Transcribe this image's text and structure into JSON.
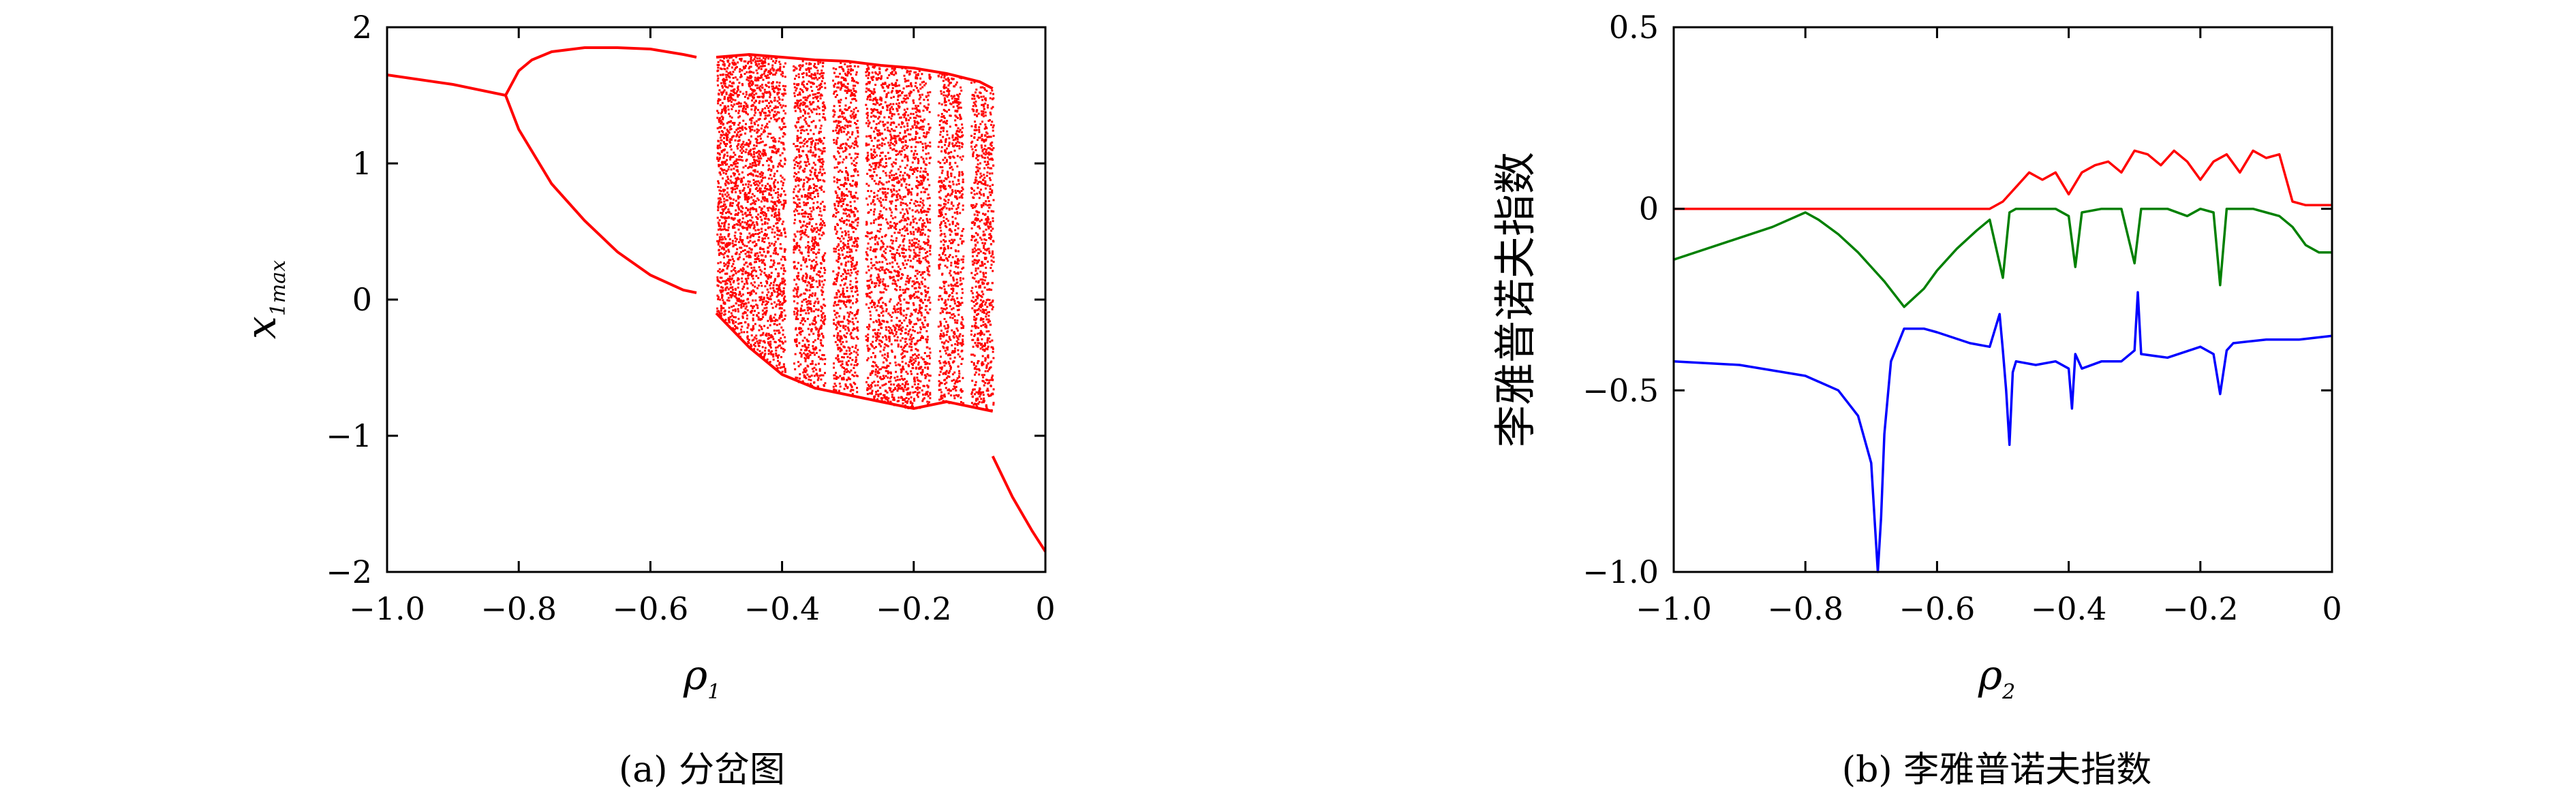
{
  "chart_data": [
    {
      "type": "scatter",
      "panel": "a",
      "caption": "(a) 分岔图",
      "xlabel": "ρ",
      "xlabel_sub": "1",
      "ylabel": "x",
      "ylabel_sub": "1max",
      "xlim": [
        -1.0,
        0
      ],
      "ylim": [
        -2,
        2
      ],
      "xticks": [
        -1.0,
        -0.8,
        -0.6,
        -0.4,
        -0.2,
        0
      ],
      "xtick_labels": [
        "−1.0",
        "−0.8",
        "−0.6",
        "−0.4",
        "−0.2",
        "0"
      ],
      "yticks": [
        -2,
        -1,
        0,
        1,
        2
      ],
      "ytick_labels": [
        "−2",
        "−1",
        "0",
        "1",
        "2"
      ],
      "color": "#ff0000",
      "series": [
        {
          "branch": "period-1",
          "x": [
            -1.0,
            -0.9,
            -0.82
          ],
          "y": [
            1.65,
            1.58,
            1.5
          ]
        },
        {
          "branch": "period-2 upper",
          "x": [
            -0.82,
            -0.8,
            -0.78,
            -0.75,
            -0.7,
            -0.65,
            -0.6,
            -0.55,
            -0.53
          ],
          "y": [
            1.5,
            1.68,
            1.76,
            1.82,
            1.85,
            1.85,
            1.84,
            1.8,
            1.78
          ]
        },
        {
          "branch": "period-2 lower",
          "x": [
            -0.82,
            -0.8,
            -0.75,
            -0.7,
            -0.65,
            -0.6,
            -0.55,
            -0.53
          ],
          "y": [
            1.5,
            1.25,
            0.85,
            0.58,
            0.35,
            0.18,
            0.07,
            0.05
          ]
        },
        {
          "branch": "chaotic band upper edge",
          "x": [
            -0.5,
            -0.45,
            -0.4,
            -0.35,
            -0.3,
            -0.25,
            -0.2,
            -0.15,
            -0.1,
            -0.08
          ],
          "y": [
            1.78,
            1.8,
            1.78,
            1.76,
            1.75,
            1.72,
            1.7,
            1.66,
            1.6,
            1.55
          ]
        },
        {
          "branch": "chaotic band lower edge",
          "x": [
            -0.5,
            -0.45,
            -0.4,
            -0.35,
            -0.3,
            -0.25,
            -0.2,
            -0.15,
            -0.1,
            -0.08
          ],
          "y": [
            -0.1,
            -0.35,
            -0.55,
            -0.65,
            -0.7,
            -0.75,
            -0.8,
            -0.75,
            -0.8,
            -0.82
          ]
        },
        {
          "branch": "right-end branch",
          "x": [
            -0.08,
            -0.05,
            -0.02,
            0
          ],
          "y": [
            -1.15,
            -1.45,
            -1.7,
            -1.85
          ]
        }
      ],
      "periodic_windows": [
        -0.39,
        -0.33,
        -0.28,
        -0.17,
        -0.12
      ]
    },
    {
      "type": "line",
      "panel": "b",
      "caption": "(b) 李雅普诺夫指数",
      "xlabel": "ρ",
      "xlabel_sub": "2",
      "ylabel": "李雅普诺夫指数",
      "xlim": [
        -1.0,
        0
      ],
      "ylim": [
        -1.0,
        0.5
      ],
      "xticks": [
        -1.0,
        -0.8,
        -0.6,
        -0.4,
        -0.2,
        0
      ],
      "xtick_labels": [
        "−1.0",
        "−0.8",
        "−0.6",
        "−0.4",
        "−0.2",
        "0"
      ],
      "yticks": [
        -1.0,
        -0.5,
        0,
        0.5
      ],
      "ytick_labels": [
        "−1.0",
        "−0.5",
        "0",
        "0.5"
      ],
      "series": [
        {
          "color": "#ff0000",
          "x": [
            -1.0,
            -0.6,
            -0.52,
            -0.5,
            -0.48,
            -0.46,
            -0.44,
            -0.42,
            -0.4,
            -0.38,
            -0.36,
            -0.34,
            -0.32,
            -0.3,
            -0.28,
            -0.26,
            -0.24,
            -0.22,
            -0.2,
            -0.18,
            -0.16,
            -0.14,
            -0.12,
            -0.1,
            -0.08,
            -0.06,
            -0.04,
            -0.02,
            0
          ],
          "y": [
            0,
            0,
            0,
            0.02,
            0.06,
            0.1,
            0.08,
            0.1,
            0.04,
            0.1,
            0.12,
            0.13,
            0.1,
            0.16,
            0.15,
            0.12,
            0.16,
            0.13,
            0.08,
            0.13,
            0.15,
            0.1,
            0.16,
            0.14,
            0.15,
            0.02,
            0.01,
            0.01,
            0.01
          ]
        },
        {
          "color": "#008000",
          "x": [
            -1.0,
            -0.9,
            -0.85,
            -0.8,
            -0.78,
            -0.75,
            -0.72,
            -0.7,
            -0.68,
            -0.65,
            -0.62,
            -0.6,
            -0.57,
            -0.54,
            -0.52,
            -0.5,
            -0.49,
            -0.48,
            -0.45,
            -0.42,
            -0.4,
            -0.39,
            -0.38,
            -0.35,
            -0.32,
            -0.3,
            -0.29,
            -0.28,
            -0.25,
            -0.22,
            -0.2,
            -0.18,
            -0.17,
            -0.16,
            -0.14,
            -0.12,
            -0.1,
            -0.08,
            -0.06,
            -0.04,
            -0.02,
            0
          ],
          "y": [
            -0.14,
            -0.08,
            -0.05,
            -0.01,
            -0.03,
            -0.07,
            -0.12,
            -0.16,
            -0.2,
            -0.27,
            -0.22,
            -0.17,
            -0.11,
            -0.06,
            -0.03,
            -0.19,
            -0.01,
            0,
            0,
            0,
            -0.02,
            -0.16,
            -0.01,
            0,
            0,
            -0.15,
            0,
            0,
            0,
            -0.02,
            0,
            -0.01,
            -0.21,
            0,
            0,
            0,
            -0.01,
            -0.02,
            -0.05,
            -0.1,
            -0.12,
            -0.12
          ]
        },
        {
          "color": "#0000ff",
          "x": [
            -1.0,
            -0.9,
            -0.8,
            -0.75,
            -0.72,
            -0.7,
            -0.695,
            -0.69,
            -0.685,
            -0.68,
            -0.67,
            -0.65,
            -0.62,
            -0.6,
            -0.55,
            -0.52,
            -0.505,
            -0.5,
            -0.495,
            -0.49,
            -0.485,
            -0.48,
            -0.45,
            -0.42,
            -0.4,
            -0.395,
            -0.39,
            -0.38,
            -0.35,
            -0.32,
            -0.3,
            -0.295,
            -0.29,
            -0.25,
            -0.2,
            -0.18,
            -0.17,
            -0.16,
            -0.15,
            -0.1,
            -0.05,
            0
          ],
          "y": [
            -0.42,
            -0.43,
            -0.46,
            -0.5,
            -0.57,
            -0.7,
            -0.85,
            -1.0,
            -0.85,
            -0.62,
            -0.42,
            -0.33,
            -0.33,
            -0.34,
            -0.37,
            -0.38,
            -0.29,
            -0.39,
            -0.5,
            -0.65,
            -0.45,
            -0.42,
            -0.43,
            -0.42,
            -0.44,
            -0.55,
            -0.4,
            -0.44,
            -0.42,
            -0.42,
            -0.39,
            -0.23,
            -0.4,
            -0.41,
            -0.38,
            -0.4,
            -0.51,
            -0.39,
            -0.37,
            -0.36,
            -0.36,
            -0.35
          ]
        }
      ]
    }
  ]
}
